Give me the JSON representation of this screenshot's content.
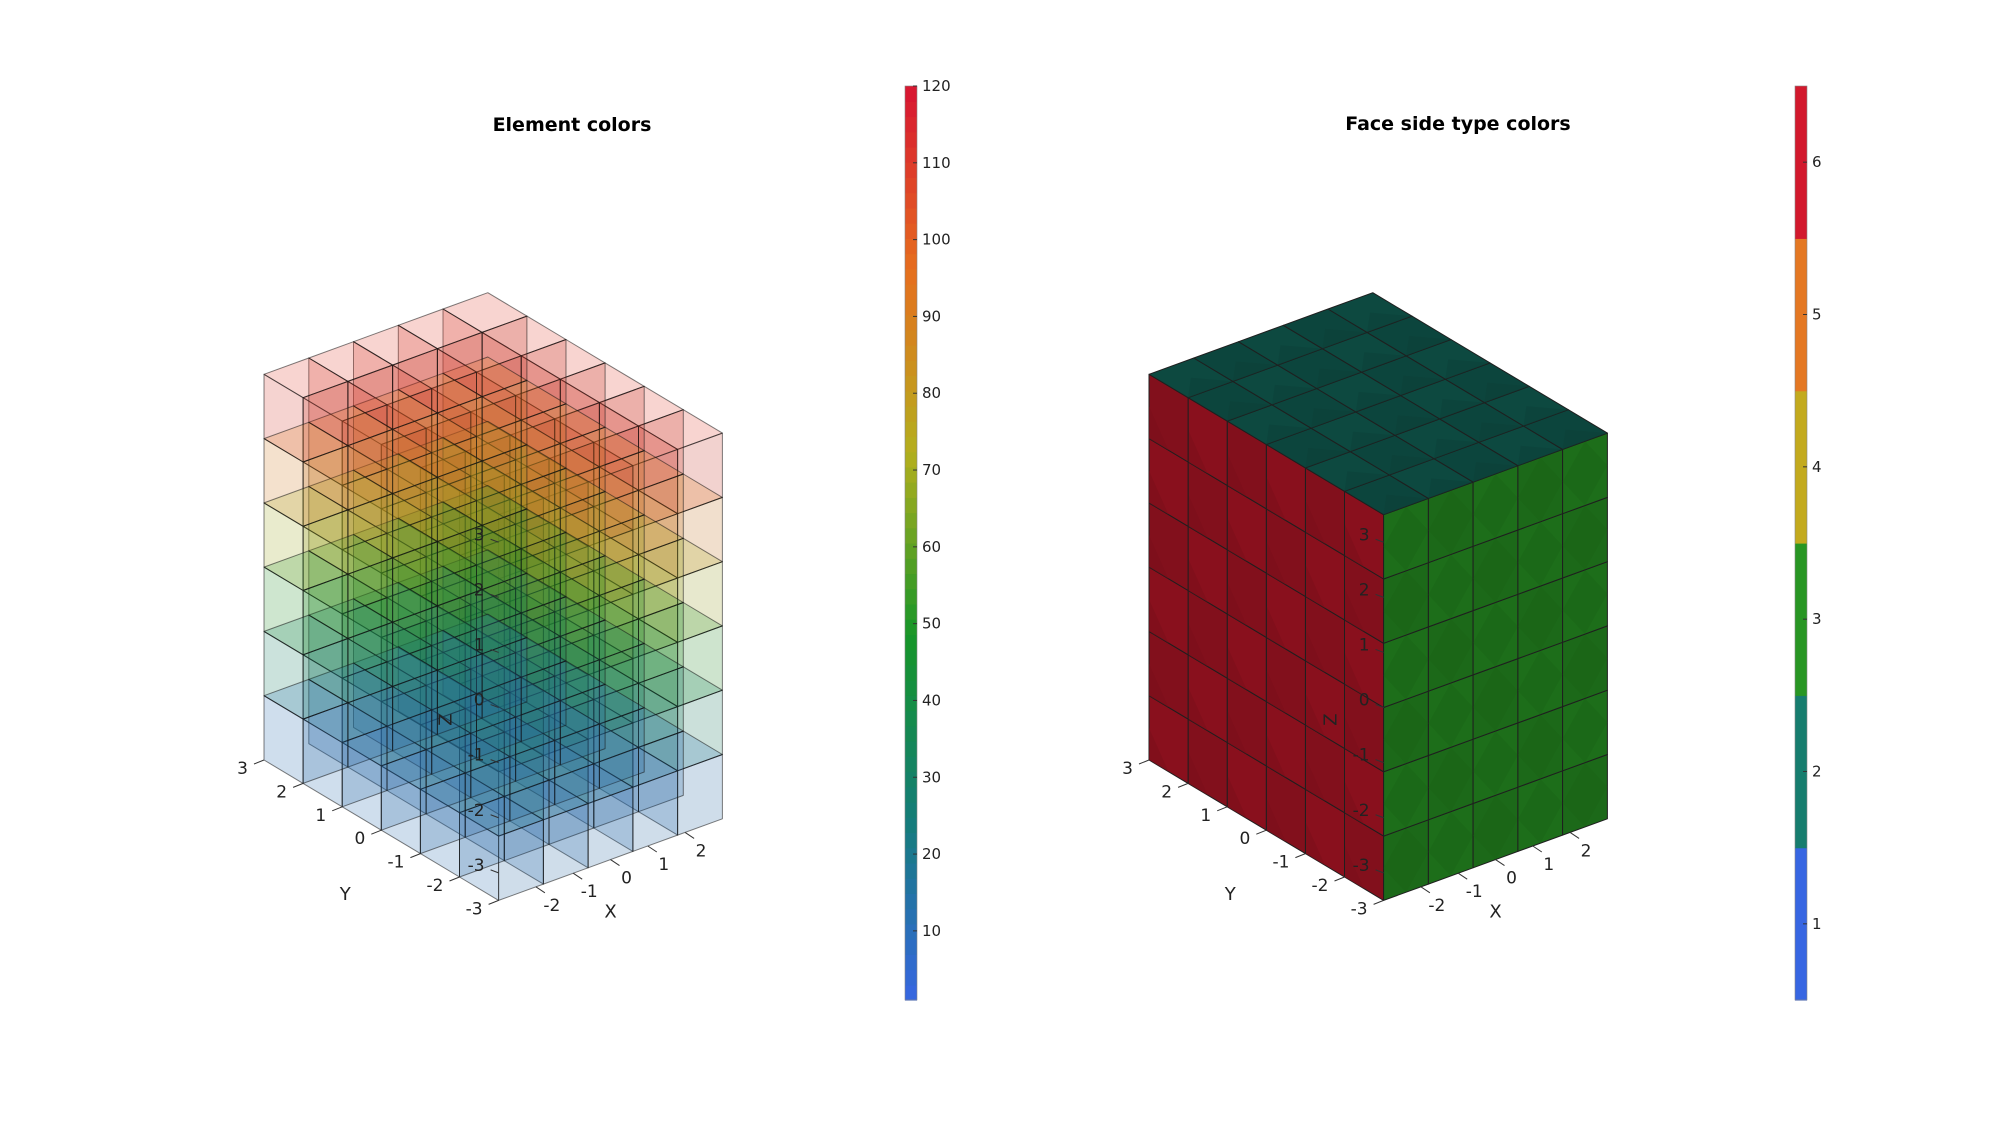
{
  "chart_data": [
    {
      "type": "3d-voxel",
      "title": "Element colors",
      "xlabel": "X",
      "ylabel": "Y",
      "zlabel": "Z",
      "xticks": [
        -2,
        -1,
        0,
        1,
        2
      ],
      "yticks": [
        -3,
        -2,
        -1,
        0,
        1,
        2,
        3
      ],
      "zticks": [
        -3,
        -2,
        -1,
        0,
        1,
        2,
        3
      ],
      "xlim": [
        -3,
        3
      ],
      "ylim": [
        -3,
        3
      ],
      "zlim": [
        -3.5,
        3.5
      ],
      "grid": {
        "nx": 5,
        "ny": 6,
        "nz": 6
      },
      "element_count": 120,
      "face_alpha": 0.6,
      "colorbar": {
        "min": 1,
        "max": 120,
        "ticks": [
          10,
          20,
          30,
          40,
          50,
          60,
          70,
          80,
          90,
          100,
          110,
          120
        ],
        "colormap": "gjet"
      }
    },
    {
      "type": "3d-voxel",
      "title": "Face side type colors",
      "xlabel": "X",
      "ylabel": "Y",
      "zlabel": "Z",
      "xticks": [
        -2,
        -1,
        0,
        1,
        2
      ],
      "yticks": [
        -3,
        -2,
        -1,
        0,
        1,
        2,
        3
      ],
      "zticks": [
        -3,
        -2,
        -1,
        0,
        1,
        2,
        3
      ],
      "xlim": [
        -3,
        3
      ],
      "ylim": [
        -3,
        3
      ],
      "zlim": [
        -3.5,
        3.5
      ],
      "grid": {
        "nx": 5,
        "ny": 6,
        "nz": 6
      },
      "face_values": {
        "top": 2,
        "left": 6,
        "right": 3
      },
      "colorbar": {
        "min": 0.5,
        "max": 6.5,
        "ticks": [
          1,
          2,
          3,
          4,
          5,
          6
        ],
        "colormap": "gjet-6"
      }
    }
  ]
}
